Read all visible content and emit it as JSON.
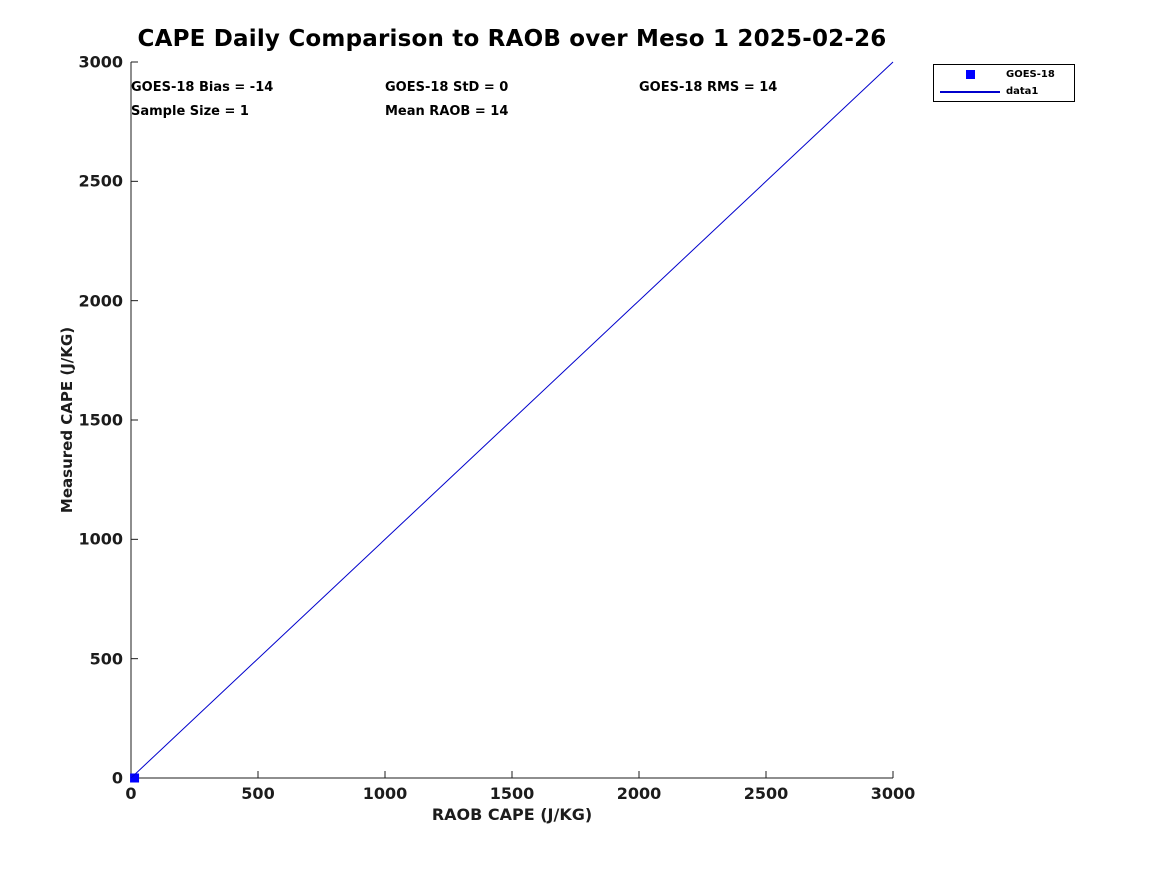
{
  "figure": {
    "title": "CAPE Daily Comparison to RAOB over Meso 1 2025-02-26",
    "background_color": "#ffffff",
    "axis_color": "#1c1c1c"
  },
  "annotations": {
    "bias": "GOES-18 Bias = -14",
    "std": "GOES-18 StD = 0",
    "rms": "GOES-18 RMS = 14",
    "sample_size": "Sample Size = 1",
    "mean_raob": "Mean RAOB = 14"
  },
  "legend": {
    "position": "top-right",
    "entries": [
      {
        "label": "GOES-18",
        "sample": "marker",
        "marker": "square",
        "color": "#0000ff"
      },
      {
        "label": "data1",
        "sample": "line",
        "color": "#0000cc"
      }
    ]
  },
  "chart_data": {
    "type": "scatter",
    "title": "CAPE Daily Comparison to RAOB over Meso 1 2025-02-26",
    "xlabel": "RAOB CAPE (J/KG)",
    "ylabel": "Measured CAPE (J/KG)",
    "xlim": [
      0,
      3000
    ],
    "ylim": [
      0,
      3000
    ],
    "xticks": [
      0,
      500,
      1000,
      1500,
      2000,
      2500,
      3000
    ],
    "yticks": [
      0,
      500,
      1000,
      1500,
      2000,
      2500,
      3000
    ],
    "grid": false,
    "legend_position": "top-right",
    "series": [
      {
        "name": "GOES-18",
        "type": "scatter",
        "marker": "square",
        "color": "#0000ff",
        "points": [
          [
            14,
            0
          ]
        ]
      },
      {
        "name": "data1",
        "type": "line",
        "color": "#0000cc",
        "points": [
          [
            0,
            0
          ],
          [
            3000,
            3000
          ]
        ]
      }
    ],
    "stats": {
      "goes18_bias": -14,
      "goes18_std": 0,
      "goes18_rms": 14,
      "sample_size": 1,
      "mean_raob": 14
    }
  }
}
